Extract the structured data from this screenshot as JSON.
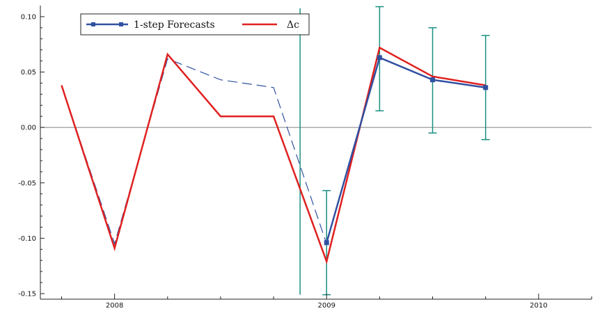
{
  "chart_data": {
    "type": "line",
    "title": "",
    "xlabel": "",
    "ylabel": "",
    "xlim": [
      2007.65,
      2010.25
    ],
    "ylim": [
      -0.155,
      0.11
    ],
    "grid": false,
    "legend_position": "top-left",
    "x_ticks": [
      {
        "value": 2008,
        "label": "2008"
      },
      {
        "value": 2009,
        "label": "2009"
      },
      {
        "value": 2010,
        "label": "2010"
      }
    ],
    "y_ticks": [
      {
        "value": 0.1,
        "label": "0.10"
      },
      {
        "value": 0.05,
        "label": "0.05"
      },
      {
        "value": 0.0,
        "label": "0.00"
      },
      {
        "value": -0.05,
        "label": "-0.05"
      },
      {
        "value": -0.1,
        "label": "-0.10"
      },
      {
        "value": -0.15,
        "label": "-0.15"
      }
    ],
    "zero_line": 0.0,
    "forecast_origin": 2008.875,
    "fitted_path": {
      "x": [
        2007.75,
        2008.0,
        2008.25,
        2008.5,
        2008.75,
        2009.0
      ],
      "y": [
        0.038,
        -0.105,
        0.062,
        0.043,
        0.036,
        -0.105
      ]
    },
    "series": [
      {
        "name": "1-step Forecasts",
        "color": "#3050a0",
        "marker": "square",
        "x": [
          2009.0,
          2009.25,
          2009.5,
          2009.75
        ],
        "y": [
          -0.104,
          0.063,
          0.043,
          0.036
        ],
        "error_low": [
          -0.151,
          0.015,
          -0.005,
          -0.011
        ],
        "error_high": [
          -0.057,
          0.109,
          0.09,
          0.083
        ]
      },
      {
        "name": "Δc",
        "color": "#e02020",
        "x": [
          2007.75,
          2008.0,
          2008.25,
          2008.5,
          2008.75,
          2009.0,
          2009.25,
          2009.5,
          2009.75
        ],
        "y": [
          0.038,
          -0.109,
          0.066,
          0.01,
          0.01,
          -0.121,
          0.072,
          0.046,
          0.038
        ]
      }
    ],
    "colors": {
      "forecast": "#3050a0",
      "actual": "#e02020",
      "error_bars": "#1a8f80",
      "zero_line": "#808080",
      "axis": "#222222"
    }
  }
}
